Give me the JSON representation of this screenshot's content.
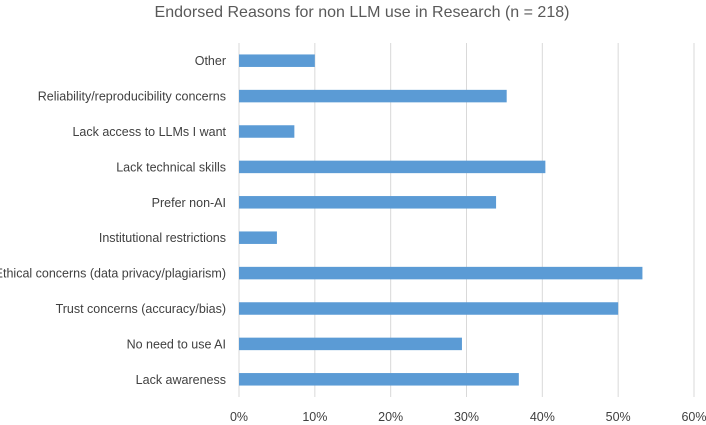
{
  "chart_data": {
    "type": "bar",
    "orientation": "horizontal",
    "title": "Endorsed Reasons for non LLM use in Research (n = 218)",
    "xlabel": "",
    "ylabel": "",
    "categories": [
      "Other",
      "Reliability/reproducibility concerns",
      "Lack access to LLMs I want",
      "Lack technical skills",
      "Prefer non-AI",
      "Institutional restrictions",
      "Ethical concerns (data privacy/plagiarism)",
      "Trust concerns (accuracy/bias)",
      "No need to use AI",
      "Lack awareness"
    ],
    "values": [
      10,
      35.3,
      7.3,
      40.4,
      33.9,
      5.0,
      53.2,
      50.0,
      29.4,
      36.9
    ],
    "xlim": [
      0,
      60
    ],
    "tick_values": [
      0,
      10,
      20,
      30,
      40,
      50,
      60
    ],
    "tick_labels": [
      "0%",
      "10%",
      "20%",
      "30%",
      "40%",
      "50%",
      "60%"
    ],
    "grid": true,
    "bar_color": "#5b9bd5"
  }
}
